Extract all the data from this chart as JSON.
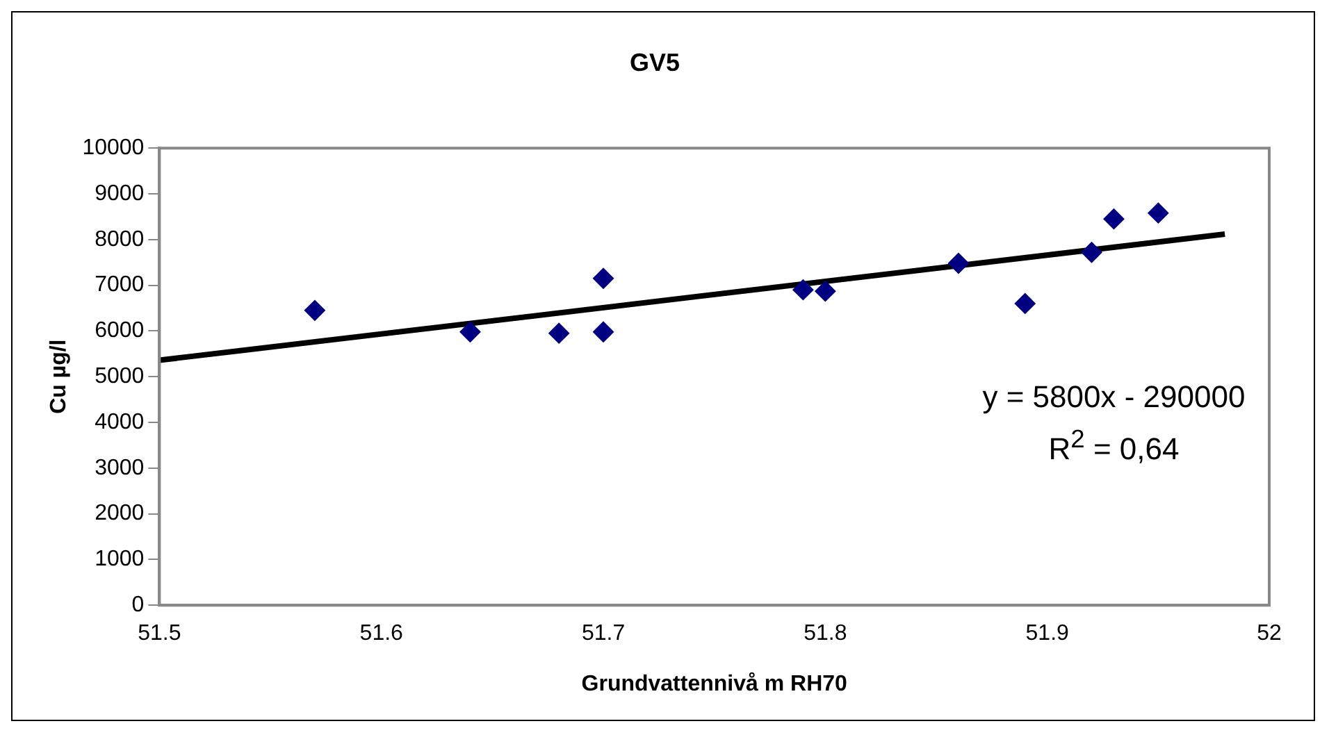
{
  "chart_data": {
    "type": "scatter",
    "title": "GV5",
    "xlabel": "Grundvattennivå m RH70",
    "ylabel": "Cu µg/l",
    "series": [
      {
        "color": "#000080",
        "marker": "diamond",
        "x": [
          51.57,
          51.64,
          51.68,
          51.7,
          51.7,
          51.79,
          51.8,
          51.86,
          51.89,
          51.92,
          51.93,
          51.95
        ],
        "values": [
          6450,
          5980,
          5950,
          7150,
          5980,
          6900,
          6870,
          7480,
          6600,
          7720,
          8450,
          8580
        ]
      },
      {
        "type": "line",
        "marker": "none",
        "color": "#000000",
        "x": [
          51.5,
          51.98
        ],
        "values": [
          5360,
          8120
        ]
      }
    ],
    "xlim": [
      51.5,
      52
    ],
    "xticks": [
      51.5,
      51.6,
      51.7,
      51.8,
      51.9,
      52
    ],
    "ylim": [
      0,
      10000
    ],
    "yticks": [
      0,
      1000,
      2000,
      3000,
      4000,
      5000,
      6000,
      7000,
      8000,
      9000,
      10000
    ],
    "annotations": [
      "y = 5800x - 290000",
      "R$^{2}$ = 0,64"
    ],
    "line_style": "solid",
    "grid": false,
    "legend": false
  }
}
